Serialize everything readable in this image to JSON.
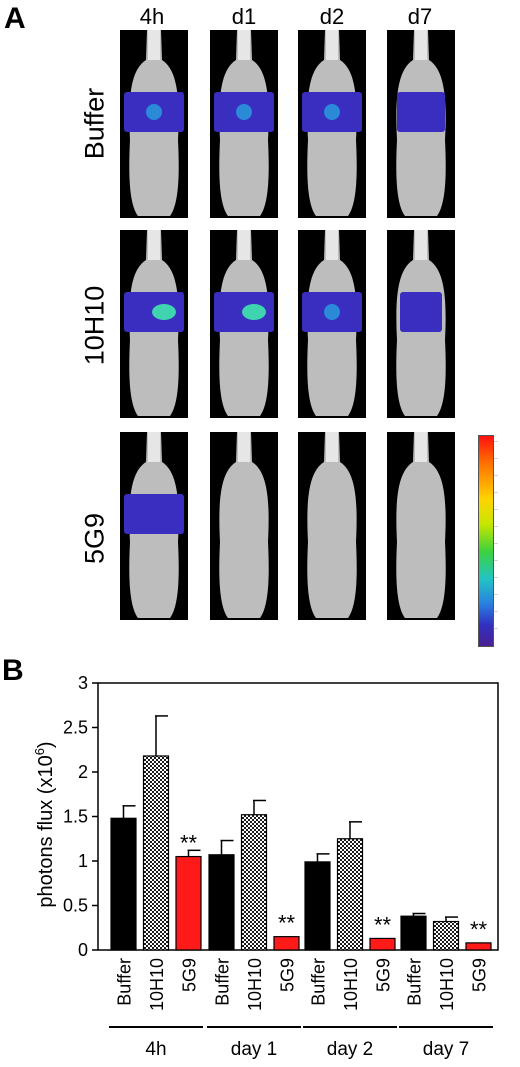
{
  "panel_a": {
    "letter": "A",
    "timepoints": [
      "4h",
      "d1",
      "d2",
      "d7"
    ],
    "groups": [
      "Buffer",
      "10H10",
      "5G9"
    ],
    "colorbar_colors": [
      "#ff1010",
      "#ffd400",
      "#3dd13d",
      "#22c4c4",
      "#3030c0"
    ]
  },
  "panel_b": {
    "letter": "B"
  },
  "chart_data": {
    "type": "bar",
    "ylabel_main": "photons flux (x10",
    "ylabel_sup": "6",
    "ylabel_close": ")",
    "ylim": [
      0,
      3
    ],
    "yticks": [
      "0",
      "0.5",
      "1",
      "1.5",
      "2",
      "2.5",
      "3"
    ],
    "ytick_values": [
      0,
      0.5,
      1,
      1.5,
      2,
      2.5,
      3
    ],
    "groups": [
      {
        "label": "4h",
        "bars": [
          {
            "category": "Buffer",
            "value": 1.48,
            "error": 0.14,
            "sig": ""
          },
          {
            "category": "10H10",
            "value": 2.18,
            "error": 0.45,
            "sig": ""
          },
          {
            "category": "5G9",
            "value": 1.05,
            "error": 0.07,
            "sig": "**"
          }
        ]
      },
      {
        "label": "day 1",
        "bars": [
          {
            "category": "Buffer",
            "value": 1.07,
            "error": 0.16,
            "sig": ""
          },
          {
            "category": "10H10",
            "value": 1.52,
            "error": 0.16,
            "sig": ""
          },
          {
            "category": "5G9",
            "value": 0.15,
            "error": 0.0,
            "sig": "**"
          }
        ]
      },
      {
        "label": "day 2",
        "bars": [
          {
            "category": "Buffer",
            "value": 0.99,
            "error": 0.09,
            "sig": ""
          },
          {
            "category": "10H10",
            "value": 1.25,
            "error": 0.19,
            "sig": ""
          },
          {
            "category": "5G9",
            "value": 0.13,
            "error": 0.0,
            "sig": "**"
          }
        ]
      },
      {
        "label": "day 7",
        "bars": [
          {
            "category": "Buffer",
            "value": 0.38,
            "error": 0.03,
            "sig": ""
          },
          {
            "category": "10H10",
            "value": 0.32,
            "error": 0.05,
            "sig": ""
          },
          {
            "category": "5G9",
            "value": 0.08,
            "error": 0.0,
            "sig": "**"
          }
        ]
      }
    ],
    "series_colors": {
      "Buffer": "#000000",
      "10H10": "checker",
      "5G9": "#ff1a1a"
    }
  }
}
